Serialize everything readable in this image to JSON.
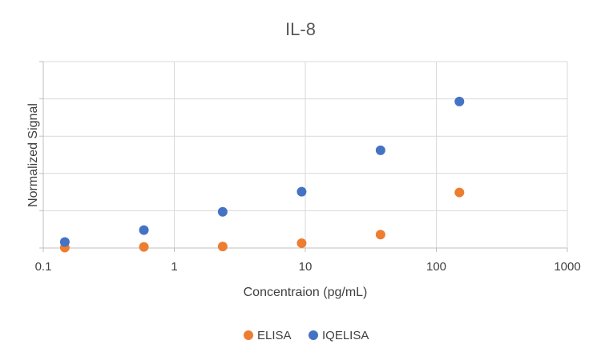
{
  "chart_data": {
    "type": "scatter",
    "title": "IL-8",
    "xlabel": "Concentraion (pg/mL)",
    "ylabel": "Normalized Signal",
    "x_scale": "log",
    "xlim": [
      0.1,
      1000
    ],
    "ylim": [
      0,
      5
    ],
    "x_ticks": [
      "0.1",
      "1",
      "10",
      "100",
      "1000"
    ],
    "y_ticks": [
      0,
      1,
      2,
      3,
      4,
      5
    ],
    "y_tick_labels_shown": false,
    "grid": true,
    "legend_position": "bottom",
    "series": [
      {
        "name": "ELISA",
        "color": "#ed7d31",
        "points": [
          {
            "x": 0.146,
            "y": 0.01
          },
          {
            "x": 0.586,
            "y": 0.03
          },
          {
            "x": 2.34,
            "y": 0.04
          },
          {
            "x": 9.38,
            "y": 0.13
          },
          {
            "x": 37.5,
            "y": 0.36
          },
          {
            "x": 150,
            "y": 1.49
          }
        ]
      },
      {
        "name": "IQELISA",
        "color": "#4472c4",
        "points": [
          {
            "x": 0.146,
            "y": 0.16
          },
          {
            "x": 0.586,
            "y": 0.48
          },
          {
            "x": 2.34,
            "y": 0.97
          },
          {
            "x": 9.38,
            "y": 1.51
          },
          {
            "x": 37.5,
            "y": 2.62
          },
          {
            "x": 150,
            "y": 3.93
          }
        ]
      }
    ]
  }
}
